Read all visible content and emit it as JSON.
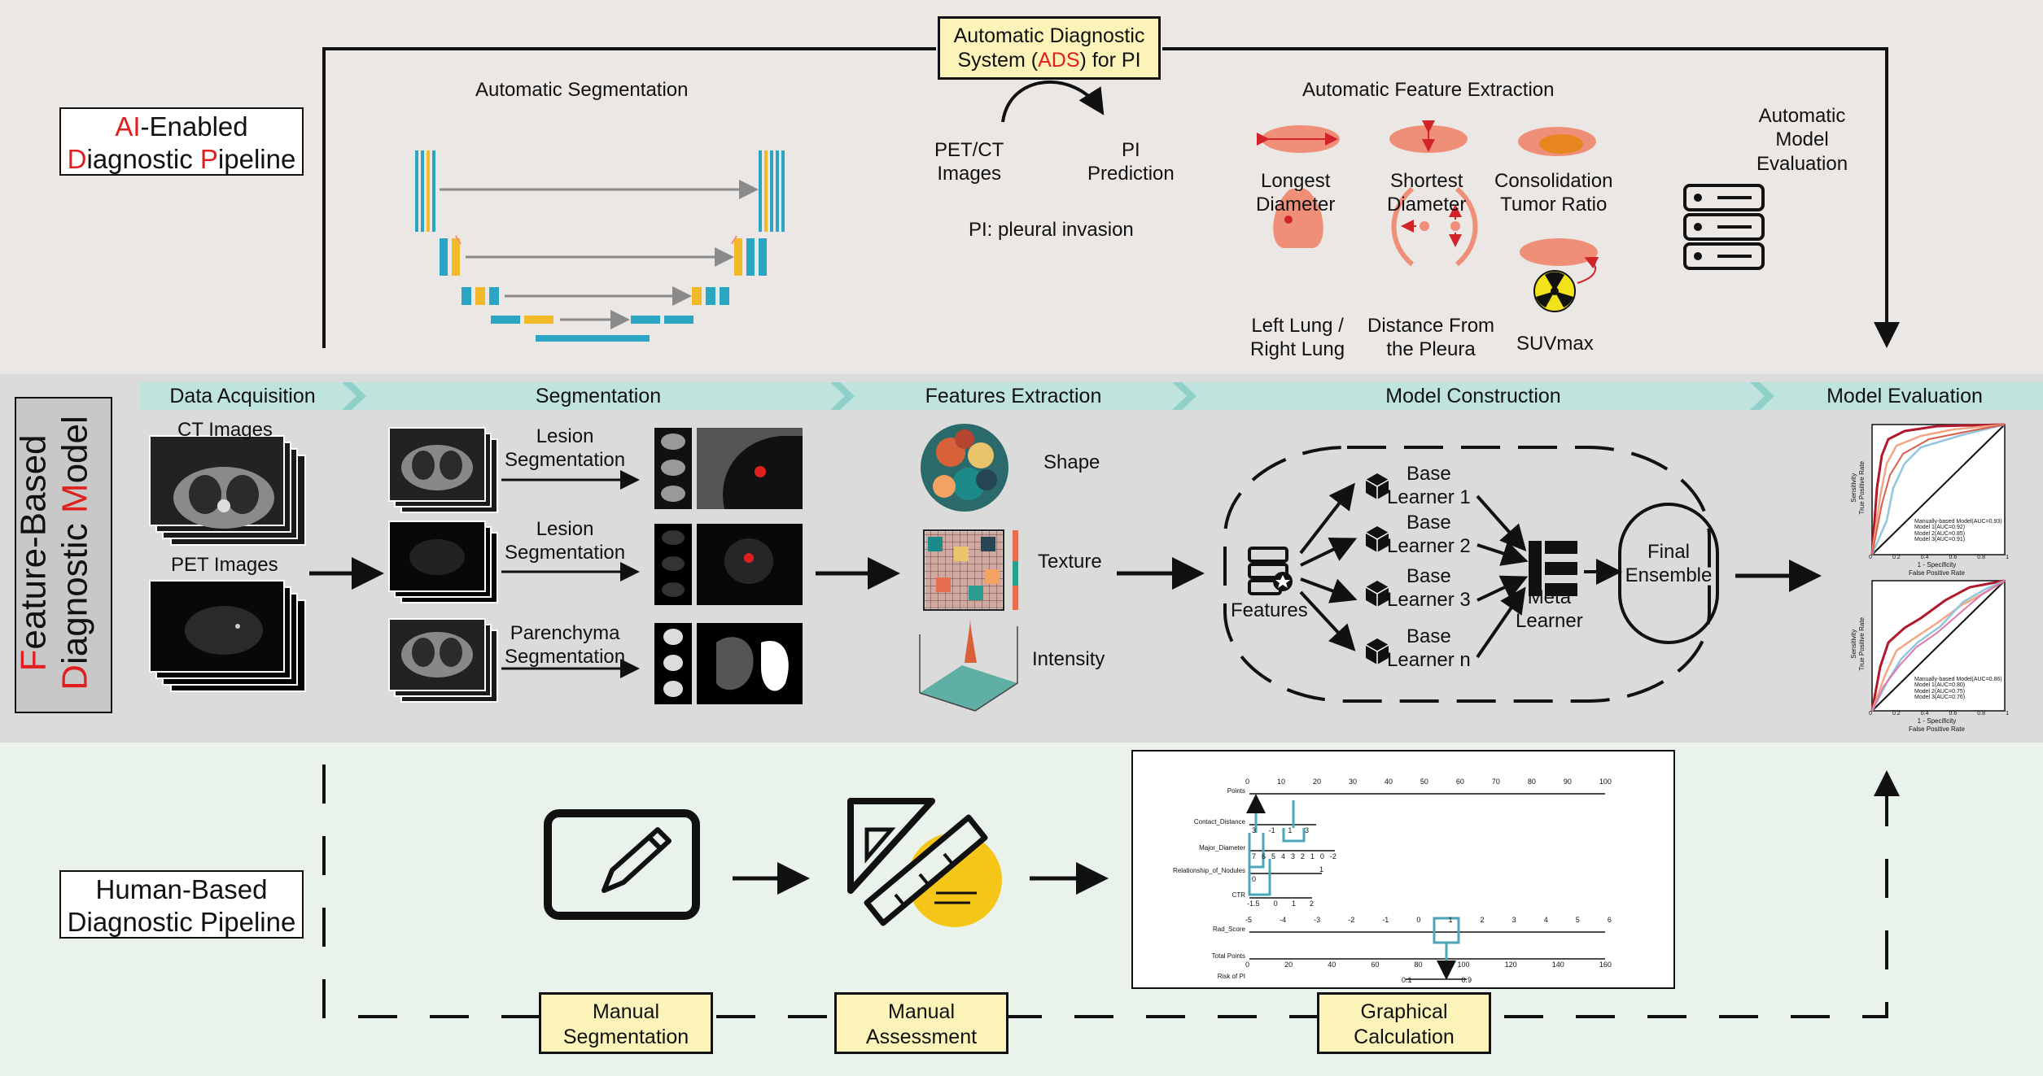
{
  "ads_title": {
    "pre": "Automatic Diagnostic",
    "line2_pre": "System (",
    "acronym": "ADS",
    "line2_post": ") for PI"
  },
  "ai_pipeline": {
    "letter_a": "A",
    "letter_i": "I",
    "rest1": "-Enabled",
    "letter_d": "D",
    "rest2": "iagnostic ",
    "letter_p": "P",
    "rest3": "ipeline"
  },
  "top": {
    "auto_seg": "Automatic Segmentation",
    "petct_line1": "PET/CT",
    "petct_line2": "Images",
    "pi_line1": "PI",
    "pi_line2": "Prediction",
    "pi_def": "PI: pleural invasion",
    "auto_feat": "Automatic Feature Extraction",
    "feat1_l1": "Longest",
    "feat1_l2": "Diameter",
    "feat2_l1": "Shortest",
    "feat2_l2": "Diameter",
    "feat3_l1": "Consolidation",
    "feat3_l2": "Tumor Ratio",
    "feat4_l1": "Left Lung /",
    "feat4_l2": "Right Lung",
    "feat5_l1": "Distance From",
    "feat5_l2": "the Pleura",
    "feat6": "SUVmax",
    "eval_l1": "Automatic",
    "eval_l2": "Model",
    "eval_l3": "Evaluation"
  },
  "phases": [
    "Data Acquisition",
    "Segmentation",
    "Features Extraction",
    "Model Construction",
    "Model Evaluation"
  ],
  "feature_model": {
    "letter_f": "F",
    "rest1": "eature-Based",
    "letter_d": "D",
    "rest2": "iagnostic ",
    "letter_m": "M",
    "rest3": "odel"
  },
  "mid": {
    "ct_images": "CT Images",
    "pet_images": "PET Images",
    "seg1_l1": "Lesion",
    "seg1_l2": "Segmentation",
    "seg2_l1": "Lesion",
    "seg2_l2": "Segmentation",
    "seg3_l1": "Parenchyma",
    "seg3_l2": "Segmentation",
    "shape": "Shape",
    "texture": "Texture",
    "intensity": "Intensity",
    "features": "Features",
    "bl1_l1": "Base",
    "bl1_l2": "Learner 1",
    "bl2_l1": "Base",
    "bl2_l2": "Learner 2",
    "bl3_l1": "Base",
    "bl3_l2": "Learner 3",
    "bln_l1": "Base",
    "bln_l2": "Learner n",
    "meta_l1": "Meta",
    "meta_l2": "Learner",
    "final_l1": "Final",
    "final_l2": "Ensemble"
  },
  "roc1": {
    "ylabel1": "Sensitivity",
    "ylabel2": "True Positive Rate",
    "xlabel1": "1 - Specificity",
    "xlabel2": "False Positive Rate",
    "legend": [
      "Manually-based Model(AUC=0.93)",
      "Model 1(AUC=0.92)",
      "Model 2(AUC=0.85)",
      "Model 3(AUC=0.91)"
    ],
    "ticks": [
      "0",
      "0.2",
      "0.4",
      "0.6",
      "0.8",
      "1"
    ]
  },
  "roc2": {
    "ylabel1": "Sensitivity",
    "ylabel2": "True Positive Rate",
    "xlabel1": "1 - Specificity",
    "xlabel2": "False Positive Rate",
    "legend": [
      "Manually-based Model(AUC=0.86)",
      "Model 1(AUC=0.80)",
      "Model 2(AUC=0.75)",
      "Model 3(AUC=0.76)"
    ],
    "ticks": [
      "0",
      "0.2",
      "0.4",
      "0.6",
      "0.8",
      "1"
    ]
  },
  "human_pipeline": {
    "line1": "Human-Based",
    "line2": "Diagnostic Pipeline"
  },
  "bottom": {
    "man_seg_l1": "Manual",
    "man_seg_l2": "Segmentation",
    "man_ass_l1": "Manual",
    "man_ass_l2": "Assessment",
    "graph_l1": "Graphical",
    "graph_l2": "Calculation"
  },
  "nomogram": {
    "rows": [
      "Points",
      "Contact_Distance",
      "Major_Diameter",
      "Relationship_of_Nodules",
      "CTR",
      "Rad_Score",
      "Total Points",
      "Risk of PI"
    ],
    "points_ticks": [
      "0",
      "10",
      "20",
      "30",
      "40",
      "50",
      "60",
      "70",
      "80",
      "90",
      "100"
    ],
    "contact_ticks": [
      "3",
      "-1",
      "1",
      "3"
    ],
    "major_ticks": [
      "7",
      "6",
      "5",
      "4",
      "3",
      "2",
      "1",
      "0",
      "-2"
    ],
    "rel_ticks": [
      "1",
      "0"
    ],
    "ctr_ticks": [
      "-1.5",
      "0",
      "1",
      "2"
    ],
    "rad_ticks": [
      "-5",
      "-4",
      "-3",
      "-2",
      "-1",
      "0",
      "1",
      "2",
      "3",
      "4",
      "5",
      "6"
    ],
    "total_ticks": [
      "0",
      "20",
      "40",
      "60",
      "80",
      "100",
      "120",
      "140",
      "160"
    ],
    "risk_ticks": [
      "0.1",
      "0.9"
    ]
  },
  "colors": {
    "red": "#e01f1f",
    "teal": "#8fd0c9",
    "unet_blue": "#2aa6c2",
    "unet_yellow": "#f2b92b",
    "salmon": "#ef8f78",
    "yellow_box": "#fbf3b8",
    "roc_line": "#4aa7b8"
  }
}
